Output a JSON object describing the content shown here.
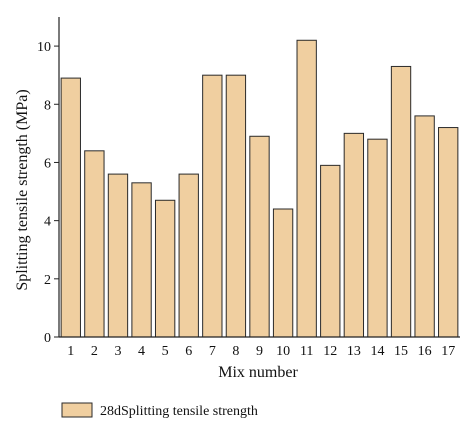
{
  "chart_data": {
    "type": "bar",
    "categories": [
      "1",
      "2",
      "3",
      "4",
      "5",
      "6",
      "7",
      "8",
      "9",
      "10",
      "11",
      "12",
      "13",
      "14",
      "15",
      "16",
      "17"
    ],
    "series": [
      {
        "name": "28dSplitting tensile strength",
        "values": [
          8.9,
          6.4,
          5.6,
          5.3,
          4.7,
          5.6,
          9.0,
          9.0,
          6.9,
          4.4,
          10.2,
          5.9,
          7.0,
          6.8,
          9.3,
          7.6,
          7.2
        ]
      }
    ],
    "xlabel": "Mix number",
    "ylabel": "Splitting tensile strength (MPa)",
    "ylim": [
      0,
      11
    ],
    "yticks": [
      0,
      2,
      4,
      6,
      8,
      10
    ],
    "grid": false,
    "legend": "bottom",
    "colors": {
      "bar_fill": "#f0cfa0",
      "bar_stroke": "#2a2a2a",
      "axis": "#222222"
    }
  }
}
